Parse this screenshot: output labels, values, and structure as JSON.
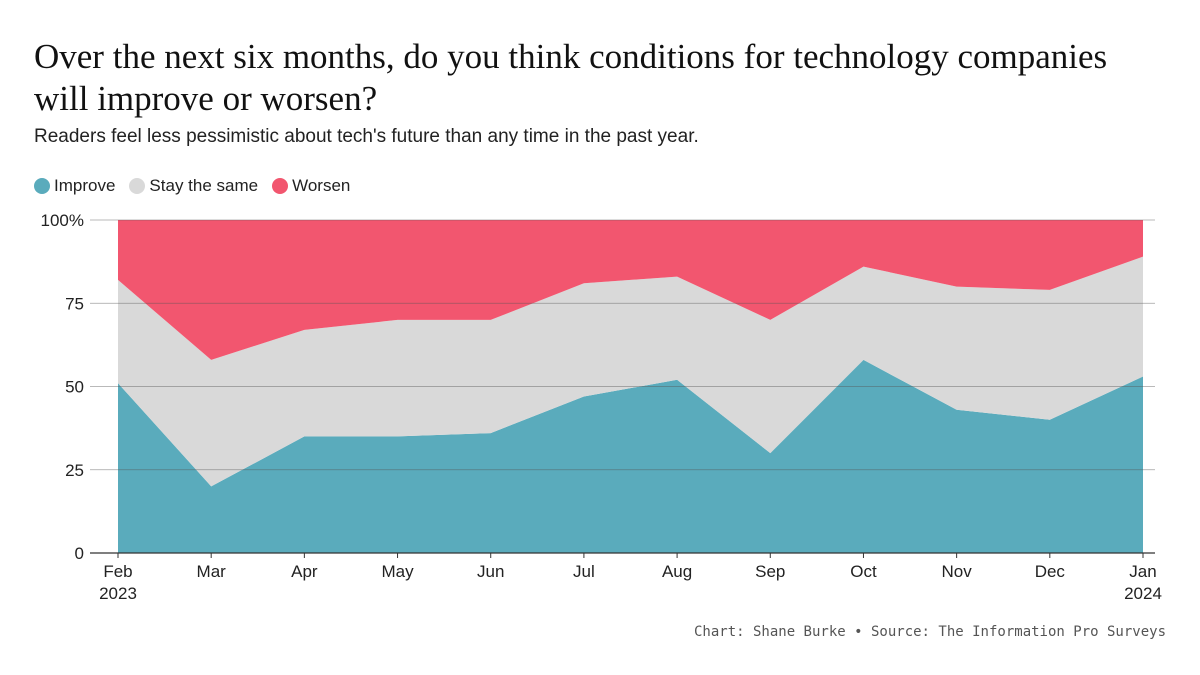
{
  "header": {
    "title": "Over the next six months, do you think conditions for technology companies will improve or worsen?",
    "subtitle": "Readers feel less pessimistic about tech's future than any time in the past year."
  },
  "footer": {
    "credit": "Chart: Shane Burke • Source: The Information Pro Surveys"
  },
  "chart_data": {
    "type": "area",
    "stacked": true,
    "title": "Over the next six months, do you think conditions for technology companies will improve or worsen?",
    "subtitle": "Readers feel less pessimistic about tech's future than any time in the past year.",
    "categories": [
      "Feb 2023",
      "Mar",
      "Apr",
      "May",
      "Jun",
      "Jul",
      "Aug",
      "Sep",
      "Oct",
      "Nov",
      "Dec",
      "Jan 2024"
    ],
    "x_tick_labels": [
      [
        "Feb",
        "2023"
      ],
      [
        "Mar"
      ],
      [
        "Apr"
      ],
      [
        "May"
      ],
      [
        "Jun"
      ],
      [
        "Jul"
      ],
      [
        "Aug"
      ],
      [
        "Sep"
      ],
      [
        "Oct"
      ],
      [
        "Nov"
      ],
      [
        "Dec"
      ],
      [
        "Jan",
        "2024"
      ]
    ],
    "y_ticks": [
      0,
      25,
      50,
      75,
      100
    ],
    "y_tick_labels": [
      "0",
      "25",
      "50",
      "75",
      "100%"
    ],
    "ylim": [
      0,
      100
    ],
    "grid": true,
    "legend_position": "top-left",
    "series": [
      {
        "name": "Improve",
        "color": "#5aabbc",
        "values": [
          51,
          20,
          35,
          35,
          36,
          47,
          52,
          30,
          58,
          43,
          40,
          53
        ]
      },
      {
        "name": "Stay the same",
        "color": "#d9d9d9",
        "values": [
          31,
          38,
          32,
          35,
          34,
          34,
          31,
          40,
          28,
          37,
          39,
          36
        ]
      },
      {
        "name": "Worsen",
        "color": "#f2566f",
        "values": [
          18,
          42,
          33,
          30,
          30,
          19,
          17,
          30,
          14,
          20,
          21,
          11
        ]
      }
    ]
  }
}
